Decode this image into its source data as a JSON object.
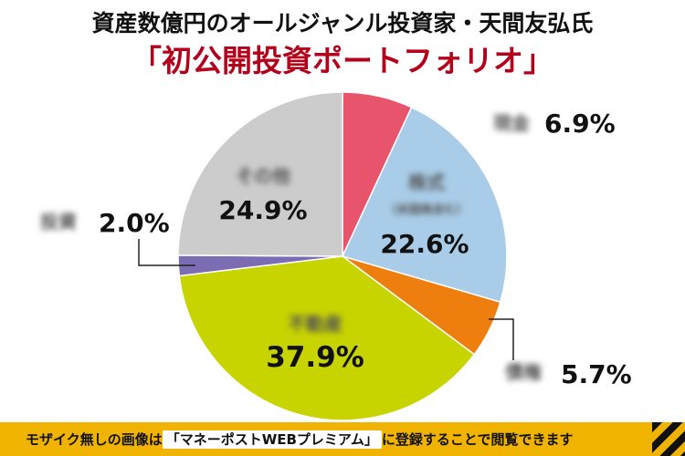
{
  "title_line1": "資産数億円のオールジャンル投資家・天間友弘氏",
  "title_line2": "「初公開投資ポートフォリオ」",
  "footer": {
    "before": "モザイク無しの画像は",
    "highlight": "「マネーポストWEBプレミアム」",
    "after": "に登録することで閲覧できます"
  },
  "chart_data": {
    "type": "pie",
    "title": "「初公開投資ポートフォリオ」",
    "start_angle_deg": 0,
    "slices": [
      {
        "label": "現金",
        "value": 6.9,
        "pct_label": "6.9%",
        "color": "#e8546c",
        "label_blurred": true
      },
      {
        "label": "株式",
        "sublabel": "（米国株含む）",
        "value": 22.6,
        "pct_label": "22.6%",
        "color": "#a9cde8",
        "label_blurred": true
      },
      {
        "label": "債権",
        "value": 5.7,
        "pct_label": "5.7%",
        "color": "#ee7f0e",
        "label_blurred": true
      },
      {
        "label": "不動産",
        "value": 37.9,
        "pct_label": "37.9%",
        "color": "#c8d400",
        "label_blurred": true
      },
      {
        "label": "投資",
        "value": 2.0,
        "pct_label": "2.0%",
        "color": "#7b6cb4",
        "label_blurred": true
      },
      {
        "label": "その他",
        "value": 24.9,
        "pct_label": "24.9%",
        "color": "#cccccc",
        "label_blurred": true
      }
    ]
  }
}
